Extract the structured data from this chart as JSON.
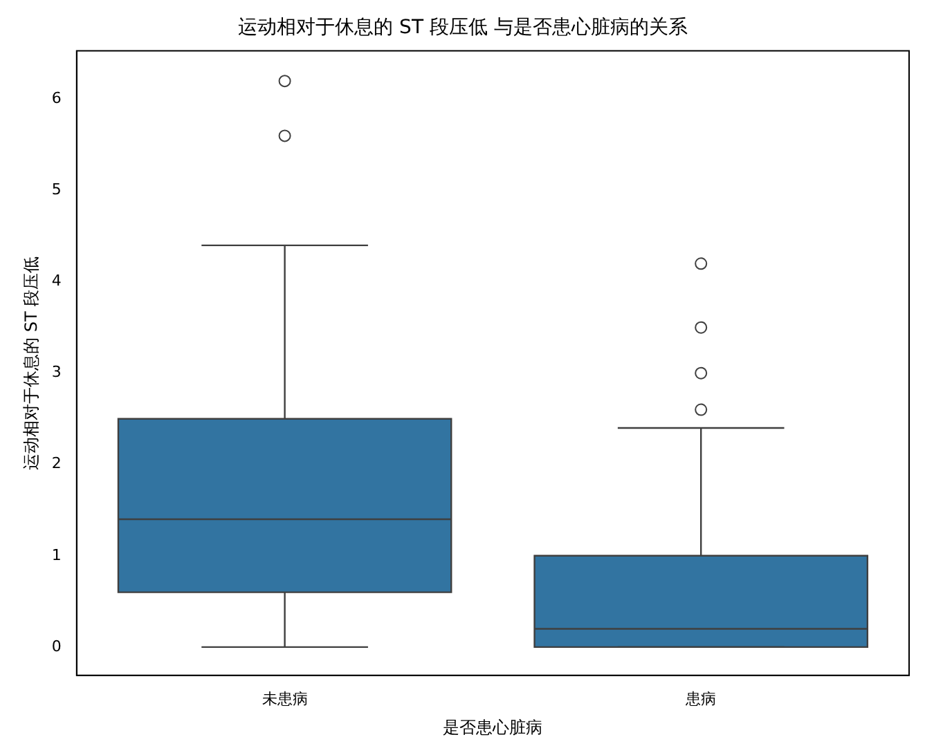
{
  "chart_data": {
    "type": "box",
    "title": "运动相对于休息的 ST 段压低 与是否患心脏病的关系",
    "xlabel": "是否患心脏病",
    "ylabel": "运动相对于休息的 ST 段压低",
    "categories": [
      "未患病",
      "患病"
    ],
    "color": "#3274a1",
    "boxes": [
      {
        "low": 0,
        "q1": 0.6,
        "median": 1.4,
        "q3": 2.5,
        "high": 4.4,
        "outliers": [
          5.6,
          6.2
        ]
      },
      {
        "low": 0,
        "q1": 0,
        "median": 0.2,
        "q3": 1.0,
        "high": 2.4,
        "outliers": [
          2.6,
          3.0,
          3.5,
          4.2
        ]
      }
    ],
    "ylim": [
      -0.31,
      6.53
    ],
    "yticks": [
      0,
      1,
      2,
      3,
      4,
      5,
      6
    ],
    "grid": false,
    "legend": false
  }
}
